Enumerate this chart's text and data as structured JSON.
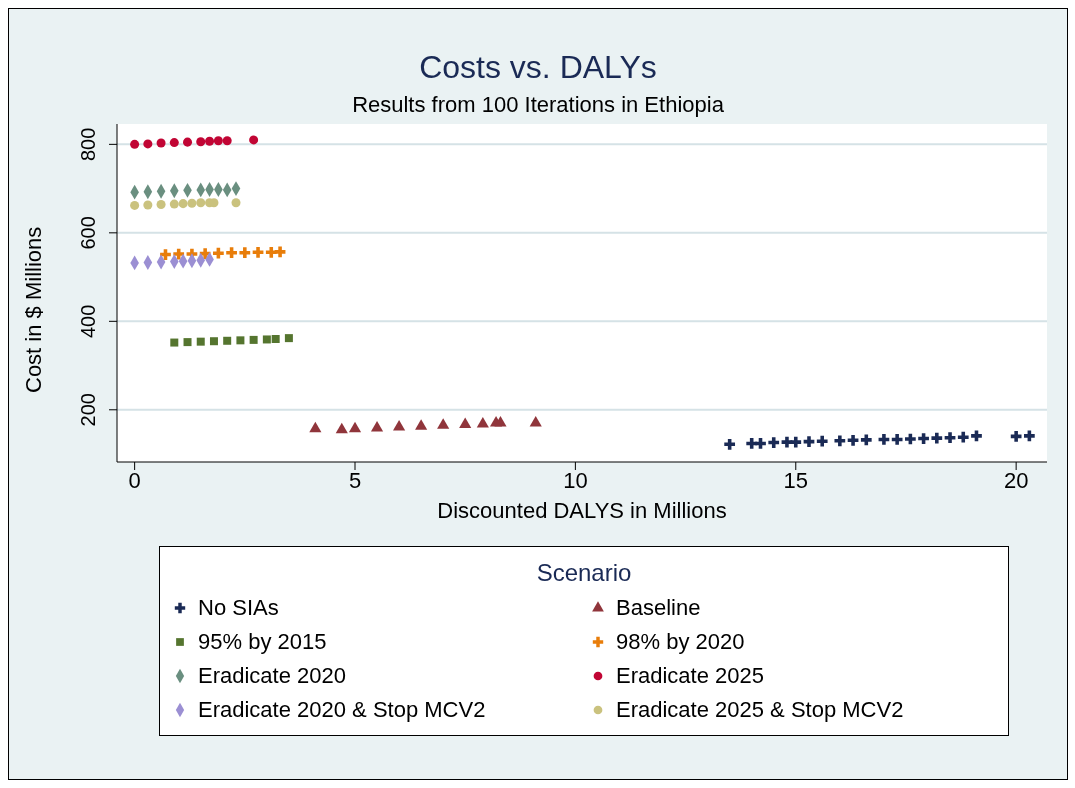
{
  "chart_data": {
    "type": "scatter",
    "title": "Costs vs. DALYs",
    "subtitle": "Results from 100 Iterations in Ethiopia",
    "xlabel": "Discounted DALYS in Millions",
    "ylabel": "Cost in $ Millions",
    "legend_title": "Scenario",
    "legend": "bottom",
    "grid": "y",
    "xlim": [
      -0.4,
      20.7
    ],
    "xticks": [
      0,
      5,
      10,
      15,
      20
    ],
    "ylim": [
      82,
      846
    ],
    "yticks": [
      200,
      400,
      600,
      800
    ],
    "series": [
      {
        "name": "No SIAs",
        "color": "#1a2a55",
        "marker": "cross",
        "x": [
          13.5,
          14.0,
          14.2,
          14.5,
          14.8,
          15.0,
          15.3,
          15.6,
          16.0,
          16.3,
          16.6,
          17.0,
          17.3,
          17.6,
          17.9,
          18.2,
          18.5,
          18.8,
          19.1,
          20.0,
          20.3
        ],
        "values": [
          122,
          124,
          124,
          126,
          127,
          127,
          128,
          129,
          130,
          131,
          132,
          133,
          133,
          134,
          135,
          136,
          137,
          138,
          141,
          140,
          141
        ]
      },
      {
        "name": "Baseline",
        "color": "#90353b",
        "marker": "triangle",
        "x": [
          4.1,
          4.7,
          5.0,
          5.5,
          6.0,
          6.5,
          7.0,
          7.5,
          7.9,
          8.2,
          8.3,
          9.1
        ],
        "values": [
          157,
          155,
          157,
          159,
          161,
          163,
          165,
          167,
          168,
          170,
          170,
          170
        ]
      },
      {
        "name": "95% by 2015",
        "color": "#55752f",
        "marker": "square",
        "x": [
          0.9,
          1.2,
          1.5,
          1.8,
          2.1,
          2.4,
          2.7,
          3.0,
          3.2,
          3.5
        ],
        "values": [
          352,
          353,
          354,
          355,
          356,
          357,
          358,
          359,
          360,
          362
        ]
      },
      {
        "name": "98% by 2020",
        "color": "#e87d0a",
        "marker": "cross",
        "x": [
          0.7,
          1.0,
          1.3,
          1.6,
          1.9,
          2.2,
          2.5,
          2.8,
          3.1,
          3.3
        ],
        "values": [
          551,
          552,
          552,
          553,
          554,
          555,
          555,
          556,
          556,
          557
        ]
      },
      {
        "name": "Eradicate 2020",
        "color": "#6a8f80",
        "marker": "diamond",
        "x": [
          0.0,
          0.3,
          0.6,
          0.9,
          1.2,
          1.5,
          1.7,
          1.9,
          2.1,
          2.3
        ],
        "values": [
          692,
          693,
          694,
          695,
          696,
          697,
          698,
          698,
          697,
          700
        ]
      },
      {
        "name": "Eradicate 2025",
        "color": "#c10534",
        "marker": "circle",
        "x": [
          0.0,
          0.3,
          0.6,
          0.9,
          1.2,
          1.5,
          1.7,
          1.9,
          2.1,
          2.7
        ],
        "values": [
          800,
          801,
          803,
          804,
          805,
          806,
          807,
          808,
          808,
          810
        ]
      },
      {
        "name": "Eradicate 2020 & Stop MCV2",
        "color": "#9b8fd3",
        "marker": "diamond",
        "x": [
          0.0,
          0.3,
          0.6,
          0.9,
          1.1,
          1.3,
          1.5,
          1.7
        ],
        "values": [
          532,
          533,
          534,
          535,
          536,
          537,
          538,
          540
        ]
      },
      {
        "name": "Eradicate 2025 & Stop MCV2",
        "color": "#cac27e",
        "marker": "circle",
        "x": [
          0.0,
          0.3,
          0.6,
          0.9,
          1.1,
          1.3,
          1.5,
          1.7,
          1.8,
          2.3
        ],
        "values": [
          662,
          663,
          664,
          665,
          666,
          667,
          668,
          668,
          668,
          668
        ]
      }
    ]
  }
}
